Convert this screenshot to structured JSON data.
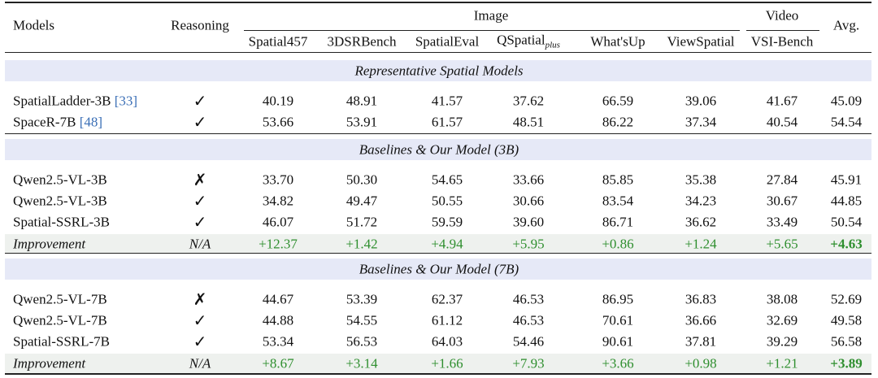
{
  "table": {
    "header": {
      "models": "Models",
      "reasoning": "Reasoning",
      "image": "Image",
      "video": "Video",
      "avg": "Avg.",
      "columns": [
        {
          "text": "Spatial457"
        },
        {
          "text": "3DSRBench"
        },
        {
          "text": "SpatialEval"
        },
        {
          "text": "QSpatial",
          "sub": "plus"
        },
        {
          "text": "What'sUp"
        },
        {
          "text": "ViewSpatial"
        },
        {
          "text": "VSI-Bench"
        }
      ]
    },
    "sections": [
      {
        "title": "Representative Spatial Models",
        "rows": [
          {
            "model": "SpatialLadder-3B",
            "ref": "[33]",
            "reasoning": "✓",
            "values": [
              "40.19",
              "48.91",
              "41.57",
              "37.62",
              "66.59",
              "39.06",
              "41.67"
            ],
            "avg": "45.09"
          },
          {
            "model": "SpaceR-7B",
            "ref": "[48]",
            "reasoning": "✓",
            "values": [
              "53.66",
              "53.91",
              "61.57",
              "48.51",
              "86.22",
              "37.34",
              "40.54"
            ],
            "avg": "54.54"
          }
        ]
      },
      {
        "title": "Baselines & Our Model (3B)",
        "rows": [
          {
            "model": "Qwen2.5-VL-3B",
            "reasoning": "✗",
            "values": [
              "33.70",
              "50.30",
              "54.65",
              "33.66",
              "85.85",
              "35.38",
              "27.84"
            ],
            "avg": "45.91"
          },
          {
            "model": "Qwen2.5-VL-3B",
            "reasoning": "✓",
            "values": [
              "34.82",
              "49.47",
              "50.55",
              "30.66",
              "83.54",
              "34.23",
              "30.67"
            ],
            "avg": "44.85"
          },
          {
            "model": "Spatial-SSRL-3B",
            "reasoning": "✓",
            "values": [
              "46.07",
              "51.72",
              "59.59",
              "39.60",
              "86.71",
              "36.62",
              "33.49"
            ],
            "avg": "50.54"
          },
          {
            "model": "Improvement",
            "reasoning": "N/A",
            "improvement": true,
            "values": [
              "+12.37",
              "+1.42",
              "+4.94",
              "+5.95",
              "+0.86",
              "+1.24",
              "+5.65"
            ],
            "avg": "+4.63"
          }
        ]
      },
      {
        "title": "Baselines & Our Model (7B)",
        "rows": [
          {
            "model": "Qwen2.5-VL-7B",
            "reasoning": "✗",
            "values": [
              "44.67",
              "53.39",
              "62.37",
              "46.53",
              "86.95",
              "36.83",
              "38.08"
            ],
            "avg": "52.69"
          },
          {
            "model": "Qwen2.5-VL-7B",
            "reasoning": "✓",
            "values": [
              "44.88",
              "54.55",
              "61.12",
              "46.53",
              "70.61",
              "36.66",
              "32.69"
            ],
            "avg": "49.58"
          },
          {
            "model": "Spatial-SSRL-7B",
            "reasoning": "✓",
            "values": [
              "53.34",
              "56.53",
              "64.03",
              "54.46",
              "90.61",
              "37.81",
              "39.29"
            ],
            "avg": "56.58"
          },
          {
            "model": "Improvement",
            "reasoning": "N/A",
            "improvement": true,
            "values": [
              "+8.67",
              "+3.14",
              "+1.66",
              "+7.93",
              "+3.66",
              "+0.98",
              "+1.21"
            ],
            "avg": "+3.89"
          }
        ]
      }
    ]
  }
}
